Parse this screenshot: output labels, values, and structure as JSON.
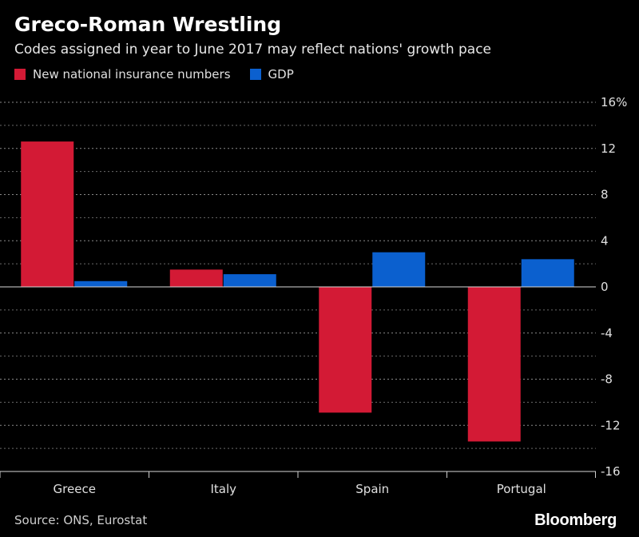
{
  "header": {
    "title": "Greco-Roman Wrestling",
    "subtitle": "Codes assigned in year to June 2017 may reflect nations' growth pace"
  },
  "chart_data": {
    "type": "bar",
    "categories": [
      "Greece",
      "Italy",
      "Spain",
      "Portugal"
    ],
    "series": [
      {
        "name": "New national insurance numbers",
        "color": "#d31a35",
        "values": [
          12.6,
          1.5,
          -10.9,
          -13.4
        ]
      },
      {
        "name": "GDP",
        "color": "#0b60cf",
        "values": [
          0.5,
          1.1,
          3.0,
          2.4
        ]
      }
    ],
    "ylim": [
      -16,
      16
    ],
    "yticks": [
      16,
      12,
      8,
      4,
      0,
      -4,
      -8,
      -12,
      -16
    ],
    "ytick_labels": [
      "16%",
      "12",
      "8",
      "4",
      "0",
      "-4",
      "-8",
      "-12",
      "-16"
    ],
    "minor_grid": [
      14,
      10,
      6,
      2,
      -2,
      -6,
      -10,
      -14
    ],
    "xlabel": "",
    "ylabel": "",
    "legend_position": "top-left",
    "grid": true
  },
  "footer": {
    "source": "Source: ONS, Eurostat",
    "brand": "Bloomberg"
  }
}
